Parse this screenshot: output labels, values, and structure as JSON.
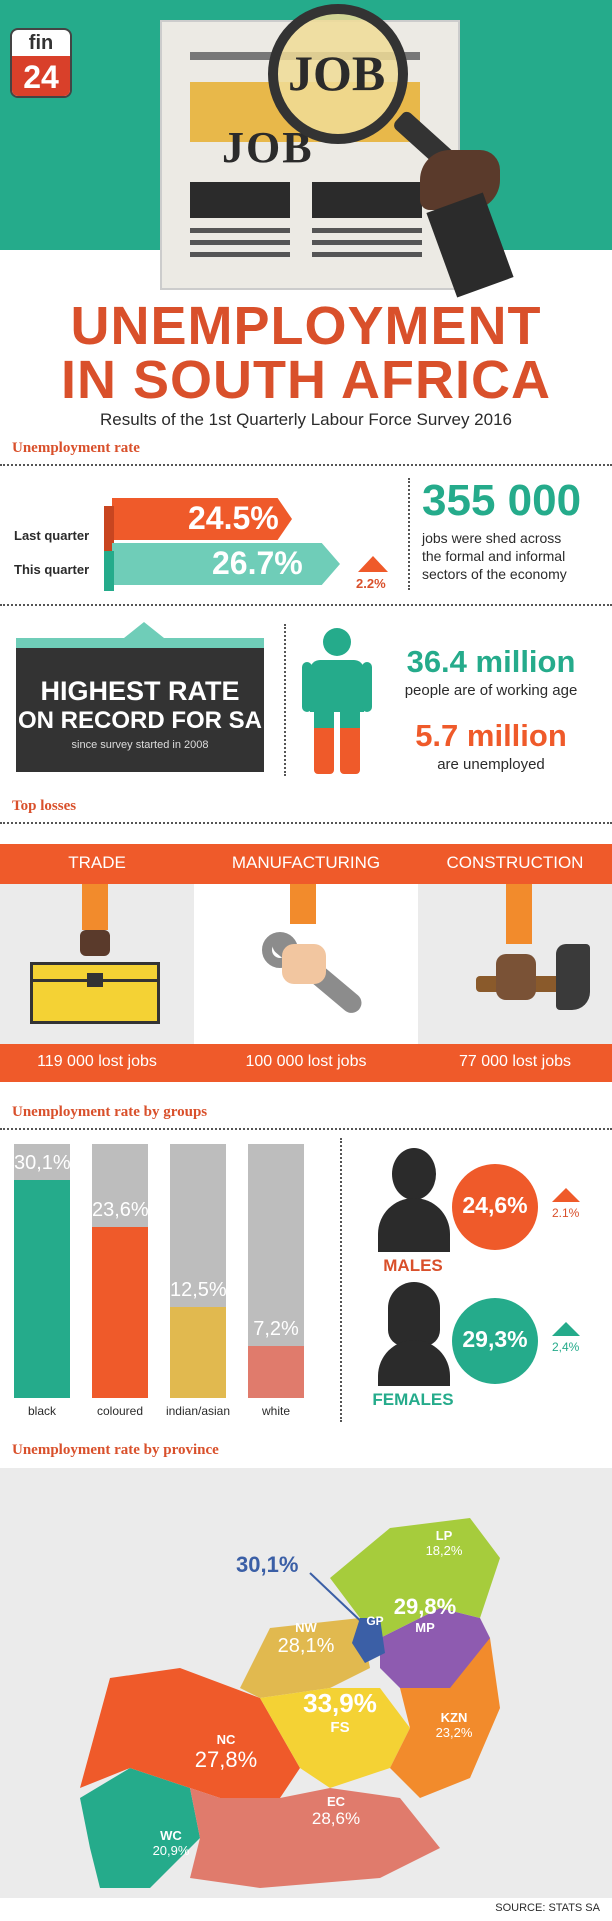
{
  "logo": {
    "line1": "fin",
    "line2": "24"
  },
  "hero": {
    "job_small": "JOB",
    "job_big": "JOB"
  },
  "title": {
    "line1": "UNEMPLOYMENT",
    "line2": "IN SOUTH AFRICA",
    "subtitle": "Results of the 1st Quarterly Labour Force Survey 2016"
  },
  "rate_section": {
    "heading": "Unemployment rate",
    "last_label": "Last quarter",
    "last_value": "24.5%",
    "this_label": "This quarter",
    "this_value": "26.7%",
    "change": "2.2%",
    "jobs_shed_value": "355 000",
    "jobs_shed_text_1": "jobs were shed across",
    "jobs_shed_text_2": "the formal and informal",
    "jobs_shed_text_3": "sectors of the economy"
  },
  "highest": {
    "line1": "HIGHEST RATE",
    "line2": "ON RECORD FOR SA",
    "note": "since survey started in 2008"
  },
  "working_age": {
    "value": "36.4 million",
    "label": "people are of working age"
  },
  "unemployed": {
    "value": "5.7 million",
    "label": "are unemployed"
  },
  "losses": {
    "heading": "Top losses",
    "items": [
      {
        "sector": "TRADE",
        "lost": "119 000 lost jobs"
      },
      {
        "sector": "MANUFACTURING",
        "lost": "100 000 lost jobs"
      },
      {
        "sector": "CONSTRUCTION",
        "lost": "77 000 lost jobs"
      }
    ]
  },
  "groups": {
    "heading": "Unemployment rate by groups",
    "bars": [
      {
        "label": "black",
        "value": 30.1,
        "text": "30,1%",
        "color": "#25ab8b"
      },
      {
        "label": "coloured",
        "value": 23.6,
        "text": "23,6%",
        "color": "#ef5a2a"
      },
      {
        "label": "indian/asian",
        "value": 12.5,
        "text": "12,5%",
        "color": "#e1b94f"
      },
      {
        "label": "white",
        "value": 7.2,
        "text": "7,2%",
        "color": "#e07b6c"
      }
    ],
    "males": {
      "label": "MALES",
      "value": "24,6%",
      "change": "2.1%"
    },
    "females": {
      "label": "FEMALES",
      "value": "29,3%",
      "change": "2,4%"
    }
  },
  "province": {
    "heading": "Unemployment rate by province",
    "gp_callout": "30,1%",
    "regions": [
      {
        "code": "LP",
        "value": "18,2%"
      },
      {
        "code": "GP",
        "value": ""
      },
      {
        "code": "MP",
        "value": "29,8%"
      },
      {
        "code": "NW",
        "value": "28,1%"
      },
      {
        "code": "FS",
        "value": "33,9%"
      },
      {
        "code": "KZN",
        "value": "23,2%"
      },
      {
        "code": "NC",
        "value": "27,8%"
      },
      {
        "code": "EC",
        "value": "28,6%"
      },
      {
        "code": "WC",
        "value": "20,9%"
      }
    ]
  },
  "source": "SOURCE: STATS SA",
  "colors": {
    "teal": "#25ab8b",
    "orange": "#ef5a2a",
    "yellow": "#e1b94f",
    "salmon": "#e07b6c",
    "dark": "#2b2b2b"
  }
}
